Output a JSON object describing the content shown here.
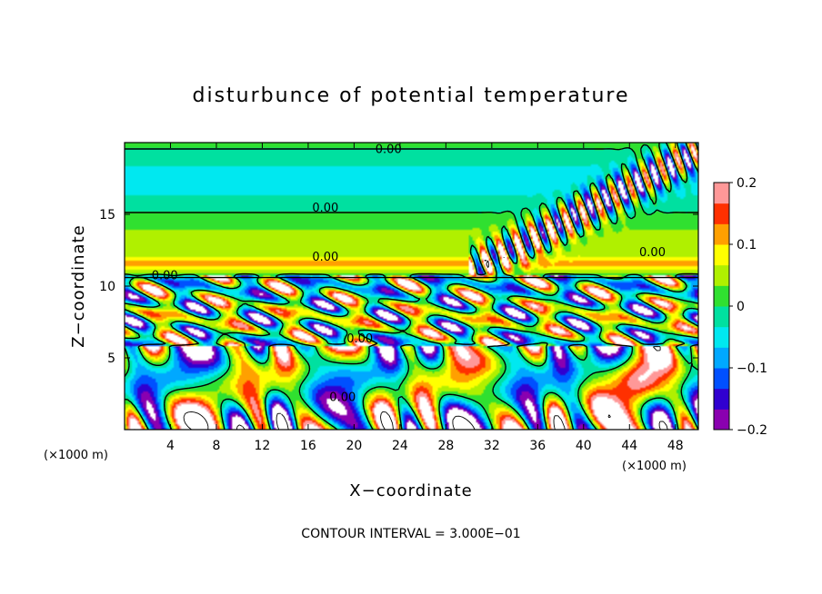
{
  "chart_data": {
    "type": "heatmap",
    "title": "disturbunce of potential temperature",
    "xlabel": "X−coordinate",
    "ylabel": "Z−coordinate",
    "x_unit": "(×1000 m)",
    "y_unit": "(×1000 m)",
    "xlim": [
      0,
      50
    ],
    "ylim": [
      0,
      20
    ],
    "x_ticks": [
      4,
      8,
      12,
      16,
      20,
      24,
      28,
      32,
      36,
      40,
      44,
      48
    ],
    "x_tick_labels": [
      "4",
      "8",
      "12",
      "16",
      "20",
      "24",
      "28",
      "32",
      "36",
      "40",
      "44",
      "48"
    ],
    "y_ticks": [
      5,
      10,
      15
    ],
    "y_tick_labels": [
      "5",
      "10",
      "15"
    ],
    "colorbar": {
      "min": -0.2,
      "max": 0.2,
      "ticks": [
        0.2,
        0.1,
        0,
        -0.1,
        -0.2
      ],
      "tick_labels": [
        "0.2",
        "0.1",
        "0",
        "−0.1",
        "−0.2"
      ],
      "colors": [
        "#8a00b0",
        "#3000d0",
        "#0050ff",
        "#00a8ff",
        "#00e8f0",
        "#00e0a0",
        "#30e030",
        "#b0f000",
        "#ffff00",
        "#ffa000",
        "#ff3000",
        "#ff9898"
      ]
    },
    "contour_interval_text": "CONTOUR INTERVAL = 3.000E−01",
    "contour_labels": [
      {
        "text": "0.00",
        "x": 23.0,
        "z": 19.6
      },
      {
        "text": "0.00",
        "x": 17.5,
        "z": 15.5
      },
      {
        "text": "0.00",
        "x": 17.5,
        "z": 12.1
      },
      {
        "text": "0.00",
        "x": 46.0,
        "z": 12.4
      },
      {
        "text": "0.00",
        "x": 3.5,
        "z": 10.8
      },
      {
        "text": "0.00",
        "x": 20.5,
        "z": 6.4
      },
      {
        "text": "0.00",
        "x": 19.0,
        "z": 2.3
      }
    ]
  }
}
